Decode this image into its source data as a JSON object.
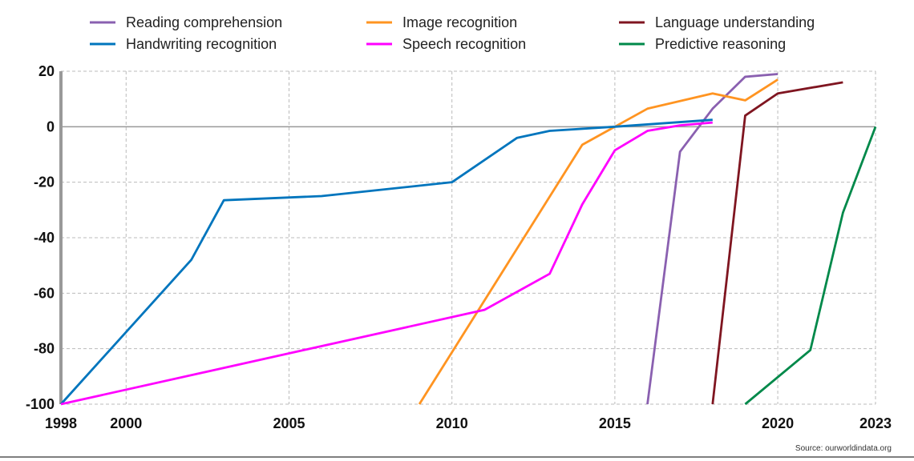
{
  "chart_data": {
    "type": "line",
    "title": "",
    "xlabel": "",
    "ylabel": "",
    "xlim": [
      1998,
      2023
    ],
    "ylim": [
      -100,
      20
    ],
    "x_ticks": [
      "1998",
      "2000",
      "2005",
      "2010",
      "2015",
      "2020",
      "2023"
    ],
    "y_ticks": [
      "20",
      "0",
      "-20",
      "-40",
      "-60",
      "-80",
      "-100"
    ],
    "grid": true,
    "legend_position": "top",
    "source": "Source: ourworldindata.org",
    "series": [
      {
        "name": "Reading comprehension",
        "color": "#8a60b0",
        "x": [
          2016,
          2017,
          2018,
          2019,
          2020
        ],
        "y": [
          -100,
          -9,
          6.5,
          18,
          19
        ]
      },
      {
        "name": "Image recognition",
        "color": "#ff9421",
        "x": [
          2009,
          2014,
          2016,
          2018,
          2019,
          2020
        ],
        "y": [
          -100,
          -6.5,
          6.5,
          12,
          9.5,
          17
        ]
      },
      {
        "name": "Language understanding",
        "color": "#7f1520",
        "x": [
          2018,
          2019,
          2020,
          2022
        ],
        "y": [
          -100,
          4,
          12,
          16
        ]
      },
      {
        "name": "Handwriting recognition",
        "color": "#0075bd",
        "x": [
          1998,
          2002,
          2003,
          2006,
          2010,
          2012,
          2013,
          2015,
          2018
        ],
        "y": [
          -100,
          -48,
          -26.5,
          -25,
          -20,
          -4,
          -1.5,
          0,
          2.5
        ]
      },
      {
        "name": "Speech recognition",
        "color": "#ff00ff",
        "x": [
          1998,
          2011,
          2013,
          2014,
          2015,
          2016,
          2017,
          2018
        ],
        "y": [
          -100,
          -66,
          -53,
          -28,
          -8.5,
          -1.5,
          0.5,
          1.5
        ]
      },
      {
        "name": "Predictive reasoning",
        "color": "#00894a",
        "x": [
          2019,
          2021,
          2022,
          2023
        ],
        "y": [
          -100,
          -80.5,
          -31,
          0
        ]
      }
    ]
  }
}
